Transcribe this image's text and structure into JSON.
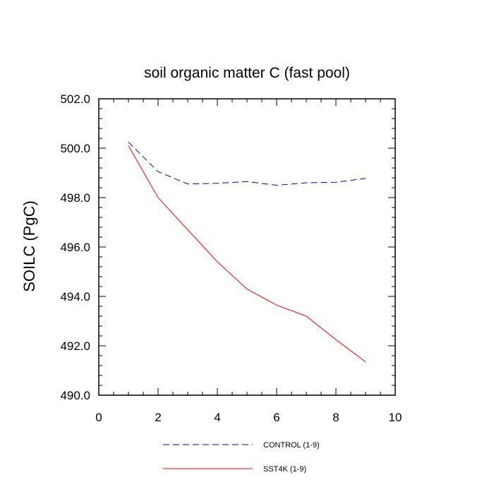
{
  "chart_data": {
    "type": "line",
    "title": "soil organic matter C (fast pool)",
    "xlabel": "",
    "ylabel": "SOILC  (PgC)",
    "xlim": [
      0,
      10
    ],
    "ylim": [
      490,
      502
    ],
    "xticks": [
      0,
      2,
      4,
      6,
      8,
      10
    ],
    "xtick_labels": [
      "0",
      "2",
      "4",
      "6",
      "8",
      "10"
    ],
    "yticks": [
      490,
      492,
      494,
      496,
      498,
      500,
      502
    ],
    "ytick_labels": [
      "490.0",
      "492.0",
      "494.0",
      "496.0",
      "498.0",
      "500.0",
      "502.0"
    ],
    "grid": false,
    "legend_position": "bottom",
    "series": [
      {
        "name": "CONTROL (1-9)",
        "color": "#0000cc",
        "dash": "dashed",
        "x": [
          1,
          2,
          3,
          4,
          5,
          6,
          7,
          8,
          9
        ],
        "y": [
          500.25,
          499.05,
          498.55,
          498.58,
          498.65,
          498.5,
          498.6,
          498.62,
          498.78
        ]
      },
      {
        "name": "SST4K (1-9)",
        "color": "#ff0000",
        "dash": "solid",
        "x": [
          1,
          2,
          3,
          4,
          5,
          6,
          7,
          8,
          9
        ],
        "y": [
          500.1,
          498.0,
          496.7,
          495.4,
          494.3,
          493.65,
          493.2,
          492.25,
          491.35
        ]
      }
    ]
  }
}
